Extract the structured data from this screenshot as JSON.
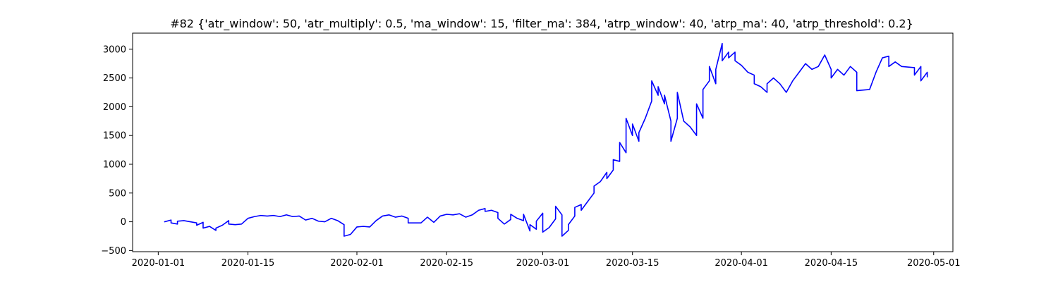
{
  "chart_data": {
    "type": "line",
    "title": "#82 {'atr_window': 50, 'atr_multiply': 0.5, 'ma_window': 15, 'filter_ma': 384, 'atrp_window': 40, 'atrp_ma': 40, 'atrp_threshold': 0.2}",
    "xlabel": "",
    "ylabel": "",
    "x_type": "date",
    "xlim": [
      "2019-12-28",
      "2020-05-04"
    ],
    "ylim": [
      -520,
      3280
    ],
    "grid": false,
    "legend": "none",
    "x_ticks": [
      "2020-01-01",
      "2020-01-15",
      "2020-02-01",
      "2020-02-15",
      "2020-03-01",
      "2020-03-15",
      "2020-04-01",
      "2020-04-15",
      "2020-05-01"
    ],
    "y_ticks": [
      -500,
      0,
      500,
      1000,
      1500,
      2000,
      2500,
      3000
    ],
    "y_tick_labels": [
      "−500",
      "0",
      "500",
      "1000",
      "1500",
      "2000",
      "2500",
      "3000"
    ],
    "series": [
      {
        "color": "#0000ff",
        "points": [
          [
            "2020-01-02",
            0
          ],
          [
            "2020-01-03",
            30
          ],
          [
            "2020-01-03",
            -20
          ],
          [
            "2020-01-04",
            -40
          ],
          [
            "2020-01-04",
            10
          ],
          [
            "2020-01-05",
            20
          ],
          [
            "2020-01-06",
            0
          ],
          [
            "2020-01-07",
            -20
          ],
          [
            "2020-01-07",
            -60
          ],
          [
            "2020-01-08",
            -10
          ],
          [
            "2020-01-08",
            -110
          ],
          [
            "2020-01-09",
            -80
          ],
          [
            "2020-01-10",
            -150
          ],
          [
            "2020-01-10",
            -110
          ],
          [
            "2020-01-11",
            -60
          ],
          [
            "2020-01-12",
            20
          ],
          [
            "2020-01-12",
            -40
          ],
          [
            "2020-01-13",
            -50
          ],
          [
            "2020-01-14",
            -40
          ],
          [
            "2020-01-15",
            60
          ],
          [
            "2020-01-16",
            90
          ],
          [
            "2020-01-17",
            110
          ],
          [
            "2020-01-18",
            100
          ],
          [
            "2020-01-19",
            110
          ],
          [
            "2020-01-20",
            90
          ],
          [
            "2020-01-21",
            120
          ],
          [
            "2020-01-22",
            90
          ],
          [
            "2020-01-23",
            100
          ],
          [
            "2020-01-24",
            30
          ],
          [
            "2020-01-25",
            60
          ],
          [
            "2020-01-26",
            10
          ],
          [
            "2020-01-27",
            0
          ],
          [
            "2020-01-28",
            60
          ],
          [
            "2020-01-29",
            20
          ],
          [
            "2020-01-30",
            -50
          ],
          [
            "2020-01-30",
            -250
          ],
          [
            "2020-01-31",
            -220
          ],
          [
            "2020-02-01",
            -90
          ],
          [
            "2020-02-02",
            -80
          ],
          [
            "2020-02-03",
            -90
          ],
          [
            "2020-02-04",
            20
          ],
          [
            "2020-02-05",
            100
          ],
          [
            "2020-02-06",
            120
          ],
          [
            "2020-02-07",
            80
          ],
          [
            "2020-02-08",
            100
          ],
          [
            "2020-02-09",
            60
          ],
          [
            "2020-02-09",
            -20
          ],
          [
            "2020-02-11",
            -20
          ],
          [
            "2020-02-12",
            80
          ],
          [
            "2020-02-13",
            -10
          ],
          [
            "2020-02-14",
            100
          ],
          [
            "2020-02-15",
            130
          ],
          [
            "2020-02-16",
            120
          ],
          [
            "2020-02-17",
            140
          ],
          [
            "2020-02-18",
            80
          ],
          [
            "2020-02-19",
            120
          ],
          [
            "2020-02-20",
            200
          ],
          [
            "2020-02-21",
            230
          ],
          [
            "2020-02-21",
            180
          ],
          [
            "2020-02-22",
            200
          ],
          [
            "2020-02-23",
            160
          ],
          [
            "2020-02-23",
            60
          ],
          [
            "2020-02-24",
            -40
          ],
          [
            "2020-02-25",
            40
          ],
          [
            "2020-02-25",
            130
          ],
          [
            "2020-02-26",
            60
          ],
          [
            "2020-02-27",
            20
          ],
          [
            "2020-02-27",
            130
          ],
          [
            "2020-02-28",
            -160
          ],
          [
            "2020-02-28",
            -50
          ],
          [
            "2020-02-29",
            -130
          ],
          [
            "2020-02-29",
            10
          ],
          [
            "2020-03-01",
            150
          ],
          [
            "2020-03-01",
            -180
          ],
          [
            "2020-03-02",
            -100
          ],
          [
            "2020-03-03",
            50
          ],
          [
            "2020-03-03",
            270
          ],
          [
            "2020-03-04",
            120
          ],
          [
            "2020-03-04",
            -250
          ],
          [
            "2020-03-05",
            -150
          ],
          [
            "2020-03-05",
            -50
          ],
          [
            "2020-03-06",
            100
          ],
          [
            "2020-03-06",
            250
          ],
          [
            "2020-03-07",
            300
          ],
          [
            "2020-03-07",
            200
          ],
          [
            "2020-03-08",
            350
          ],
          [
            "2020-03-09",
            500
          ],
          [
            "2020-03-09",
            620
          ],
          [
            "2020-03-10",
            700
          ],
          [
            "2020-03-11",
            860
          ],
          [
            "2020-03-11",
            750
          ],
          [
            "2020-03-12",
            900
          ],
          [
            "2020-03-12",
            1080
          ],
          [
            "2020-03-13",
            1050
          ],
          [
            "2020-03-13",
            1380
          ],
          [
            "2020-03-14",
            1200
          ],
          [
            "2020-03-14",
            1800
          ],
          [
            "2020-03-15",
            1500
          ],
          [
            "2020-03-15",
            1700
          ],
          [
            "2020-03-16",
            1400
          ],
          [
            "2020-03-16",
            1550
          ],
          [
            "2020-03-17",
            1800
          ],
          [
            "2020-03-18",
            2100
          ],
          [
            "2020-03-18",
            2450
          ],
          [
            "2020-03-19",
            2200
          ],
          [
            "2020-03-19",
            2350
          ],
          [
            "2020-03-20",
            2050
          ],
          [
            "2020-03-20",
            2200
          ],
          [
            "2020-03-21",
            1750
          ],
          [
            "2020-03-21",
            1400
          ],
          [
            "2020-03-22",
            1800
          ],
          [
            "2020-03-22",
            2250
          ],
          [
            "2020-03-23",
            1750
          ],
          [
            "2020-03-24",
            1650
          ],
          [
            "2020-03-25",
            1500
          ],
          [
            "2020-03-25",
            2050
          ],
          [
            "2020-03-26",
            1800
          ],
          [
            "2020-03-26",
            2300
          ],
          [
            "2020-03-27",
            2450
          ],
          [
            "2020-03-27",
            2700
          ],
          [
            "2020-03-28",
            2400
          ],
          [
            "2020-03-28",
            2650
          ],
          [
            "2020-03-29",
            3100
          ],
          [
            "2020-03-29",
            2800
          ],
          [
            "2020-03-30",
            2950
          ],
          [
            "2020-03-30",
            2850
          ],
          [
            "2020-03-31",
            2950
          ],
          [
            "2020-03-31",
            2800
          ],
          [
            "2020-04-01",
            2720
          ],
          [
            "2020-04-02",
            2600
          ],
          [
            "2020-04-03",
            2550
          ],
          [
            "2020-04-03",
            2400
          ],
          [
            "2020-04-04",
            2350
          ],
          [
            "2020-04-05",
            2250
          ],
          [
            "2020-04-05",
            2400
          ],
          [
            "2020-04-06",
            2500
          ],
          [
            "2020-04-07",
            2400
          ],
          [
            "2020-04-08",
            2250
          ],
          [
            "2020-04-09",
            2450
          ],
          [
            "2020-04-10",
            2600
          ],
          [
            "2020-04-11",
            2750
          ],
          [
            "2020-04-12",
            2650
          ],
          [
            "2020-04-13",
            2700
          ],
          [
            "2020-04-14",
            2900
          ],
          [
            "2020-04-15",
            2650
          ],
          [
            "2020-04-15",
            2500
          ],
          [
            "2020-04-16",
            2650
          ],
          [
            "2020-04-17",
            2550
          ],
          [
            "2020-04-18",
            2700
          ],
          [
            "2020-04-19",
            2600
          ],
          [
            "2020-04-19",
            2280
          ],
          [
            "2020-04-21",
            2300
          ],
          [
            "2020-04-22",
            2600
          ],
          [
            "2020-04-23",
            2850
          ],
          [
            "2020-04-24",
            2880
          ],
          [
            "2020-04-24",
            2700
          ],
          [
            "2020-04-25",
            2780
          ],
          [
            "2020-04-26",
            2700
          ],
          [
            "2020-04-28",
            2680
          ],
          [
            "2020-04-28",
            2550
          ],
          [
            "2020-04-29",
            2700
          ],
          [
            "2020-04-29",
            2450
          ],
          [
            "2020-04-30",
            2600
          ],
          [
            "2020-04-30",
            2520
          ]
        ]
      }
    ]
  }
}
